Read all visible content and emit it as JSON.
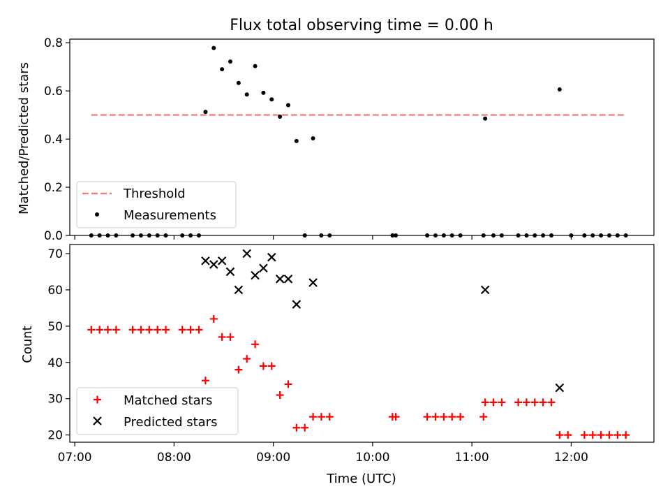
{
  "chart_data": [
    {
      "type": "scatter",
      "title": "Flux total observing time = 0.00 h",
      "xlabel": "",
      "ylabel": "Matched/Predicted stars",
      "xlim": [
        "06:57",
        "12:50"
      ],
      "ylim": [
        0,
        0.815
      ],
      "yticks": [
        0.0,
        0.2,
        0.4,
        0.6,
        0.8
      ],
      "ytick_labels": [
        "0.0",
        "0.2",
        "0.4",
        "0.6",
        "0.8"
      ],
      "legend_position": "lower-left",
      "threshold": {
        "name": "Threshold",
        "value": 0.5,
        "x_range": [
          "07:10",
          "12:32"
        ],
        "color": "#f08080",
        "style": "dashed"
      },
      "series": [
        {
          "name": "Measurements",
          "color": "#000000",
          "marker": "dot",
          "points": [
            [
              "07:10",
              0
            ],
            [
              "07:15",
              0
            ],
            [
              "07:20",
              0
            ],
            [
              "07:25",
              0
            ],
            [
              "07:35",
              0
            ],
            [
              "07:40",
              0
            ],
            [
              "07:45",
              0
            ],
            [
              "07:50",
              0
            ],
            [
              "07:55",
              0
            ],
            [
              "08:05",
              0
            ],
            [
              "08:10",
              0
            ],
            [
              "08:15",
              0
            ],
            [
              "08:19",
              0.513
            ],
            [
              "08:24",
              0.778
            ],
            [
              "08:29",
              0.69
            ],
            [
              "08:34",
              0.722
            ],
            [
              "08:39",
              0.633
            ],
            [
              "08:44",
              0.585
            ],
            [
              "08:49",
              0.703
            ],
            [
              "08:54",
              0.592
            ],
            [
              "08:59",
              0.565
            ],
            [
              "09:04",
              0.493
            ],
            [
              "09:09",
              0.541
            ],
            [
              "09:14",
              0.392
            ],
            [
              "09:19",
              0
            ],
            [
              "09:24",
              0.403
            ],
            [
              "09:29",
              0
            ],
            [
              "09:34",
              0
            ],
            [
              "10:12",
              0
            ],
            [
              "10:14",
              0
            ],
            [
              "10:33",
              0
            ],
            [
              "10:38",
              0
            ],
            [
              "10:43",
              0
            ],
            [
              "10:48",
              0
            ],
            [
              "10:53",
              0
            ],
            [
              "11:07",
              0
            ],
            [
              "11:08",
              0.485
            ],
            [
              "11:13",
              0
            ],
            [
              "11:18",
              0
            ],
            [
              "11:28",
              0
            ],
            [
              "11:33",
              0
            ],
            [
              "11:38",
              0
            ],
            [
              "11:43",
              0
            ],
            [
              "11:48",
              0
            ],
            [
              "11:53",
              0.606
            ],
            [
              "12:00",
              0
            ],
            [
              "12:08",
              0
            ],
            [
              "12:13",
              0
            ],
            [
              "12:18",
              0
            ],
            [
              "12:23",
              0
            ],
            [
              "12:28",
              0
            ],
            [
              "12:33",
              0
            ]
          ]
        }
      ]
    },
    {
      "type": "scatter",
      "title": "",
      "xlabel": "Time (UTC)",
      "ylabel": "Count",
      "xlim": [
        "06:57",
        "12:50"
      ],
      "xticks": [
        "07:00",
        "08:00",
        "09:00",
        "10:00",
        "11:00",
        "12:00"
      ],
      "ylim": [
        18,
        72.5
      ],
      "yticks": [
        20,
        30,
        40,
        50,
        60,
        70
      ],
      "ytick_labels": [
        "20",
        "30",
        "40",
        "50",
        "60",
        "70"
      ],
      "legend_position": "lower-left",
      "series": [
        {
          "name": "Matched stars",
          "color": "#ff0000",
          "marker": "plus",
          "points": [
            [
              "07:10",
              49
            ],
            [
              "07:15",
              49
            ],
            [
              "07:20",
              49
            ],
            [
              "07:25",
              49
            ],
            [
              "07:35",
              49
            ],
            [
              "07:40",
              49
            ],
            [
              "07:45",
              49
            ],
            [
              "07:50",
              49
            ],
            [
              "07:55",
              49
            ],
            [
              "08:05",
              49
            ],
            [
              "08:10",
              49
            ],
            [
              "08:15",
              49
            ],
            [
              "08:19",
              35
            ],
            [
              "08:24",
              52
            ],
            [
              "08:29",
              47
            ],
            [
              "08:34",
              47
            ],
            [
              "08:39",
              38
            ],
            [
              "08:44",
              41
            ],
            [
              "08:49",
              45
            ],
            [
              "08:54",
              39
            ],
            [
              "08:59",
              39
            ],
            [
              "09:04",
              31
            ],
            [
              "09:09",
              34
            ],
            [
              "09:14",
              22
            ],
            [
              "09:19",
              22
            ],
            [
              "09:24",
              25
            ],
            [
              "09:29",
              25
            ],
            [
              "09:34",
              25
            ],
            [
              "10:12",
              25
            ],
            [
              "10:14",
              25
            ],
            [
              "10:33",
              25
            ],
            [
              "10:38",
              25
            ],
            [
              "10:43",
              25
            ],
            [
              "10:48",
              25
            ],
            [
              "10:53",
              25
            ],
            [
              "11:07",
              25
            ],
            [
              "11:08",
              29
            ],
            [
              "11:13",
              29
            ],
            [
              "11:18",
              29
            ],
            [
              "11:28",
              29
            ],
            [
              "11:33",
              29
            ],
            [
              "11:38",
              29
            ],
            [
              "11:43",
              29
            ],
            [
              "11:48",
              29
            ],
            [
              "11:53",
              20
            ],
            [
              "11:58",
              20
            ],
            [
              "12:08",
              20
            ],
            [
              "12:13",
              20
            ],
            [
              "12:18",
              20
            ],
            [
              "12:23",
              20
            ],
            [
              "12:28",
              20
            ],
            [
              "12:33",
              20
            ]
          ]
        },
        {
          "name": "Predicted stars",
          "color": "#000000",
          "marker": "x",
          "points": [
            [
              "08:19",
              68
            ],
            [
              "08:24",
              67
            ],
            [
              "08:29",
              68
            ],
            [
              "08:34",
              65
            ],
            [
              "08:39",
              60
            ],
            [
              "08:44",
              70
            ],
            [
              "08:49",
              64
            ],
            [
              "08:54",
              66
            ],
            [
              "08:59",
              69
            ],
            [
              "09:04",
              63
            ],
            [
              "09:09",
              63
            ],
            [
              "09:14",
              56
            ],
            [
              "09:24",
              62
            ],
            [
              "11:08",
              60
            ],
            [
              "11:53",
              33
            ]
          ]
        }
      ]
    }
  ]
}
